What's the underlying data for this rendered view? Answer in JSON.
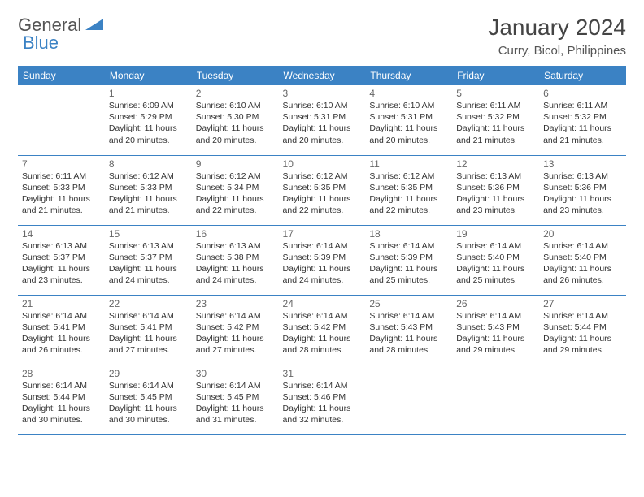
{
  "logo": {
    "word1": "General",
    "word2": "Blue"
  },
  "title": "January 2024",
  "location": "Curry, Bicol, Philippines",
  "colors": {
    "header_bg": "#3b82c4",
    "header_text": "#ffffff",
    "border": "#3b82c4",
    "body_text": "#333333",
    "title_text": "#444444"
  },
  "daysOfWeek": [
    "Sunday",
    "Monday",
    "Tuesday",
    "Wednesday",
    "Thursday",
    "Friday",
    "Saturday"
  ],
  "weeks": [
    [
      {
        "n": "",
        "sr": "",
        "ss": "",
        "dl": ""
      },
      {
        "n": "1",
        "sr": "6:09 AM",
        "ss": "5:29 PM",
        "dl": "11 hours and 20 minutes."
      },
      {
        "n": "2",
        "sr": "6:10 AM",
        "ss": "5:30 PM",
        "dl": "11 hours and 20 minutes."
      },
      {
        "n": "3",
        "sr": "6:10 AM",
        "ss": "5:31 PM",
        "dl": "11 hours and 20 minutes."
      },
      {
        "n": "4",
        "sr": "6:10 AM",
        "ss": "5:31 PM",
        "dl": "11 hours and 20 minutes."
      },
      {
        "n": "5",
        "sr": "6:11 AM",
        "ss": "5:32 PM",
        "dl": "11 hours and 21 minutes."
      },
      {
        "n": "6",
        "sr": "6:11 AM",
        "ss": "5:32 PM",
        "dl": "11 hours and 21 minutes."
      }
    ],
    [
      {
        "n": "7",
        "sr": "6:11 AM",
        "ss": "5:33 PM",
        "dl": "11 hours and 21 minutes."
      },
      {
        "n": "8",
        "sr": "6:12 AM",
        "ss": "5:33 PM",
        "dl": "11 hours and 21 minutes."
      },
      {
        "n": "9",
        "sr": "6:12 AM",
        "ss": "5:34 PM",
        "dl": "11 hours and 22 minutes."
      },
      {
        "n": "10",
        "sr": "6:12 AM",
        "ss": "5:35 PM",
        "dl": "11 hours and 22 minutes."
      },
      {
        "n": "11",
        "sr": "6:12 AM",
        "ss": "5:35 PM",
        "dl": "11 hours and 22 minutes."
      },
      {
        "n": "12",
        "sr": "6:13 AM",
        "ss": "5:36 PM",
        "dl": "11 hours and 23 minutes."
      },
      {
        "n": "13",
        "sr": "6:13 AM",
        "ss": "5:36 PM",
        "dl": "11 hours and 23 minutes."
      }
    ],
    [
      {
        "n": "14",
        "sr": "6:13 AM",
        "ss": "5:37 PM",
        "dl": "11 hours and 23 minutes."
      },
      {
        "n": "15",
        "sr": "6:13 AM",
        "ss": "5:37 PM",
        "dl": "11 hours and 24 minutes."
      },
      {
        "n": "16",
        "sr": "6:13 AM",
        "ss": "5:38 PM",
        "dl": "11 hours and 24 minutes."
      },
      {
        "n": "17",
        "sr": "6:14 AM",
        "ss": "5:39 PM",
        "dl": "11 hours and 24 minutes."
      },
      {
        "n": "18",
        "sr": "6:14 AM",
        "ss": "5:39 PM",
        "dl": "11 hours and 25 minutes."
      },
      {
        "n": "19",
        "sr": "6:14 AM",
        "ss": "5:40 PM",
        "dl": "11 hours and 25 minutes."
      },
      {
        "n": "20",
        "sr": "6:14 AM",
        "ss": "5:40 PM",
        "dl": "11 hours and 26 minutes."
      }
    ],
    [
      {
        "n": "21",
        "sr": "6:14 AM",
        "ss": "5:41 PM",
        "dl": "11 hours and 26 minutes."
      },
      {
        "n": "22",
        "sr": "6:14 AM",
        "ss": "5:41 PM",
        "dl": "11 hours and 27 minutes."
      },
      {
        "n": "23",
        "sr": "6:14 AM",
        "ss": "5:42 PM",
        "dl": "11 hours and 27 minutes."
      },
      {
        "n": "24",
        "sr": "6:14 AM",
        "ss": "5:42 PM",
        "dl": "11 hours and 28 minutes."
      },
      {
        "n": "25",
        "sr": "6:14 AM",
        "ss": "5:43 PM",
        "dl": "11 hours and 28 minutes."
      },
      {
        "n": "26",
        "sr": "6:14 AM",
        "ss": "5:43 PM",
        "dl": "11 hours and 29 minutes."
      },
      {
        "n": "27",
        "sr": "6:14 AM",
        "ss": "5:44 PM",
        "dl": "11 hours and 29 minutes."
      }
    ],
    [
      {
        "n": "28",
        "sr": "6:14 AM",
        "ss": "5:44 PM",
        "dl": "11 hours and 30 minutes."
      },
      {
        "n": "29",
        "sr": "6:14 AM",
        "ss": "5:45 PM",
        "dl": "11 hours and 30 minutes."
      },
      {
        "n": "30",
        "sr": "6:14 AM",
        "ss": "5:45 PM",
        "dl": "11 hours and 31 minutes."
      },
      {
        "n": "31",
        "sr": "6:14 AM",
        "ss": "5:46 PM",
        "dl": "11 hours and 32 minutes."
      },
      {
        "n": "",
        "sr": "",
        "ss": "",
        "dl": ""
      },
      {
        "n": "",
        "sr": "",
        "ss": "",
        "dl": ""
      },
      {
        "n": "",
        "sr": "",
        "ss": "",
        "dl": ""
      }
    ]
  ]
}
